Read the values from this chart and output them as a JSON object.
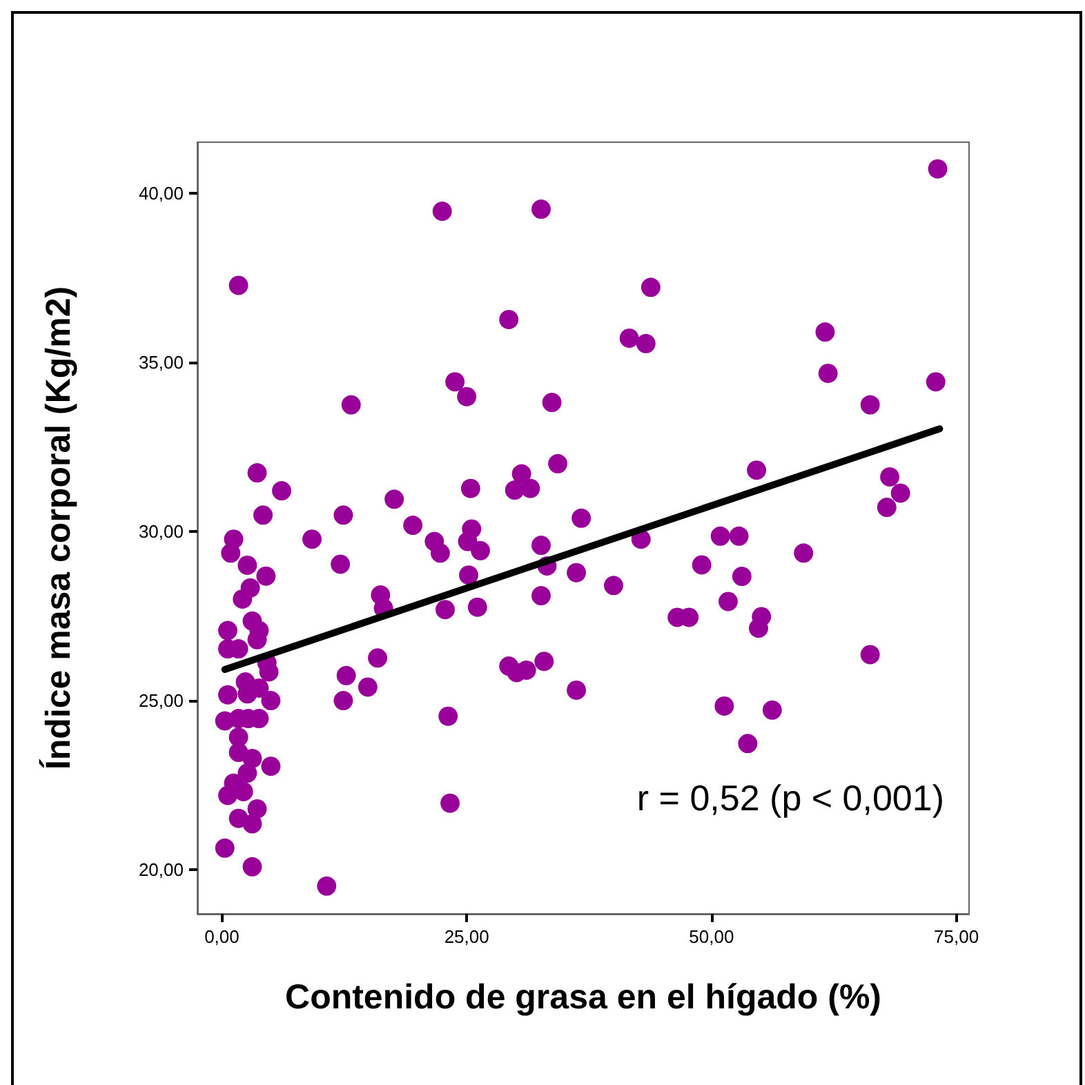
{
  "chart_data": {
    "type": "scatter",
    "xlabel": "Contenido de grasa en el hígado (%)",
    "ylabel": "Índice masa corporal (Kg/m2)",
    "annotations": [
      "r = 0,52 (p < 0,001)"
    ],
    "xlim": [
      -2.5,
      76.3
    ],
    "ylim": [
      18.7,
      41.5
    ],
    "xticks": [
      {
        "value": 0,
        "label": "0,00"
      },
      {
        "value": 25,
        "label": "25,00"
      },
      {
        "value": 50,
        "label": "50,00"
      },
      {
        "value": 75,
        "label": "75,00"
      }
    ],
    "yticks": [
      {
        "value": 20,
        "label": "20,00"
      },
      {
        "value": 25,
        "label": "25,00"
      },
      {
        "value": 30,
        "label": "30,00"
      },
      {
        "value": 35,
        "label": "35,00"
      },
      {
        "value": 40,
        "label": "40,00"
      }
    ],
    "marker": "circle",
    "series": [
      {
        "color": "#990099",
        "x": [
          3.6,
          6.1,
          4.2,
          12.4,
          1.2,
          9.2,
          0.9,
          12.1,
          2.6,
          4.5,
          2.9,
          2.1,
          3.1,
          0.6,
          3.8,
          3.6,
          0.6,
          1.7,
          4.6,
          4.8,
          12.7,
          2.4,
          3.8,
          0.6,
          2.6,
          5.0,
          12.4,
          0.3,
          1.7,
          2.7,
          3.8,
          1.7,
          1.7,
          3.1,
          5.0,
          2.6,
          1.2,
          2.2,
          0.6,
          3.6,
          1.7,
          3.1,
          0.3,
          3.1,
          10.7,
          1.7,
          22.5,
          32.6,
          29.3,
          13.2,
          23.8,
          25.0,
          33.7,
          34.3,
          17.6,
          19.5,
          21.7,
          22.3,
          25.4,
          25.5,
          25.1,
          26.4,
          25.2,
          30.6,
          29.9,
          31.5,
          36.7,
          32.6,
          33.2,
          36.2,
          40.0,
          42.8,
          16.2,
          16.5,
          22.8,
          26.1,
          32.6,
          15.9,
          14.9,
          29.3,
          30.1,
          31.1,
          32.9,
          36.2,
          23.1,
          23.3,
          73.1,
          43.8,
          41.6,
          43.3,
          61.6,
          61.9,
          72.9,
          66.2,
          54.6,
          68.2,
          69.3,
          67.9,
          50.9,
          52.8,
          59.4,
          49.0,
          53.1,
          51.7,
          46.5,
          47.7,
          55.1,
          54.8,
          66.2,
          51.3,
          56.2,
          53.7
        ],
        "values": [
          31.73,
          31.2,
          30.48,
          30.48,
          29.77,
          29.77,
          29.36,
          29.03,
          29.0,
          28.68,
          28.33,
          28.0,
          27.35,
          27.07,
          27.07,
          26.8,
          26.53,
          26.53,
          26.12,
          25.85,
          25.74,
          25.55,
          25.37,
          25.17,
          25.2,
          25.0,
          25.0,
          24.4,
          24.47,
          24.47,
          24.47,
          23.92,
          23.47,
          23.29,
          23.06,
          22.86,
          22.56,
          22.31,
          22.2,
          21.8,
          21.52,
          21.36,
          20.64,
          20.09,
          19.52,
          37.27,
          39.46,
          39.52,
          36.26,
          33.74,
          34.42,
          33.98,
          33.81,
          32.0,
          30.95,
          30.18,
          29.7,
          29.36,
          31.27,
          30.07,
          29.7,
          29.43,
          28.71,
          31.7,
          31.22,
          31.27,
          30.39,
          29.59,
          28.98,
          28.78,
          28.4,
          29.77,
          28.12,
          27.73,
          27.69,
          27.76,
          28.1,
          26.26,
          25.4,
          26.02,
          25.83,
          25.9,
          26.16,
          25.31,
          24.54,
          21.97,
          40.71,
          37.21,
          35.71,
          35.55,
          35.89,
          34.67,
          34.42,
          33.74,
          31.81,
          31.61,
          31.13,
          30.71,
          29.86,
          29.86,
          29.36,
          29.01,
          28.67,
          27.93,
          27.46,
          27.46,
          27.48,
          27.14,
          26.36,
          24.84,
          24.72,
          23.73
        ]
      },
      {
        "type": "line",
        "color": "#000000",
        "marker": "none",
        "line_style": "solid",
        "x": [
          0.3,
          73.3
        ],
        "values": [
          25.92,
          33.03
        ]
      }
    ]
  }
}
